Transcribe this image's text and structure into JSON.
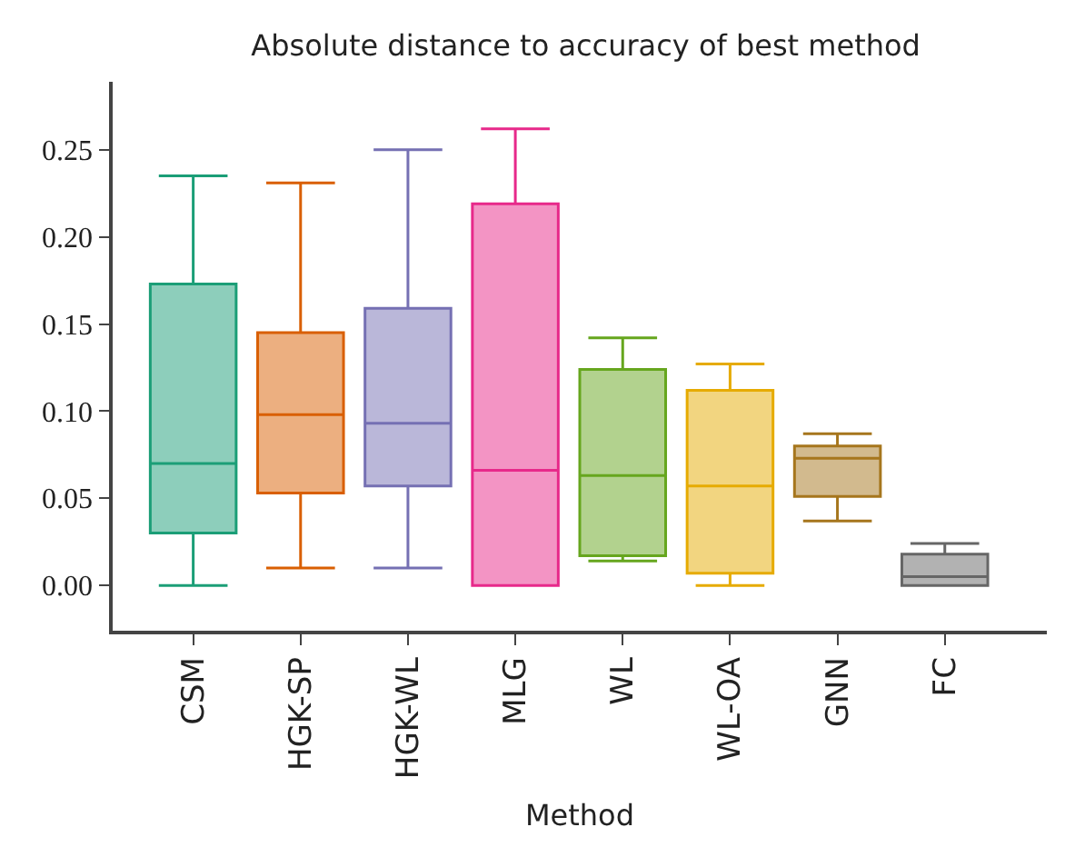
{
  "chart_data": {
    "type": "box",
    "title": "Absolute distance to accuracy of best method",
    "xlabel": "Method",
    "categories": [
      "CSM",
      "HGK-SP",
      "HGK-WL",
      "MLG",
      "WL",
      "WL-OA",
      "GNN",
      "FC"
    ],
    "colors": [
      "#1b9e77",
      "#d95f02",
      "#7570b3",
      "#e7298a",
      "#66a61e",
      "#e6ab02",
      "#a6761d",
      "#666666"
    ],
    "boxes": [
      {
        "low": 0.0,
        "q1": 0.03,
        "median": 0.07,
        "q3": 0.173,
        "high": 0.235
      },
      {
        "low": 0.01,
        "q1": 0.053,
        "median": 0.098,
        "q3": 0.145,
        "high": 0.231
      },
      {
        "low": 0.01,
        "q1": 0.057,
        "median": 0.093,
        "q3": 0.159,
        "high": 0.25
      },
      {
        "low": 0.0,
        "q1": 0.0,
        "median": 0.066,
        "q3": 0.219,
        "high": 0.262
      },
      {
        "low": 0.014,
        "q1": 0.017,
        "median": 0.063,
        "q3": 0.124,
        "high": 0.142
      },
      {
        "low": 0.0,
        "q1": 0.007,
        "median": 0.057,
        "q3": 0.112,
        "high": 0.127
      },
      {
        "low": 0.037,
        "q1": 0.051,
        "median": 0.073,
        "q3": 0.08,
        "high": 0.087
      },
      {
        "low": 0.0,
        "q1": 0.0,
        "median": 0.005,
        "q3": 0.018,
        "high": 0.024
      }
    ],
    "ylim": [
      -0.026,
      0.289
    ],
    "yticks": [
      {
        "value": 0,
        "label": "0.00"
      },
      {
        "value": 0.05,
        "label": "0.05"
      },
      {
        "value": 0.1,
        "label": "0.10"
      },
      {
        "value": 0.15,
        "label": "0.15"
      },
      {
        "value": 0.2,
        "label": "0.20"
      },
      {
        "value": 0.25,
        "label": "0.25"
      }
    ],
    "legend": false
  }
}
